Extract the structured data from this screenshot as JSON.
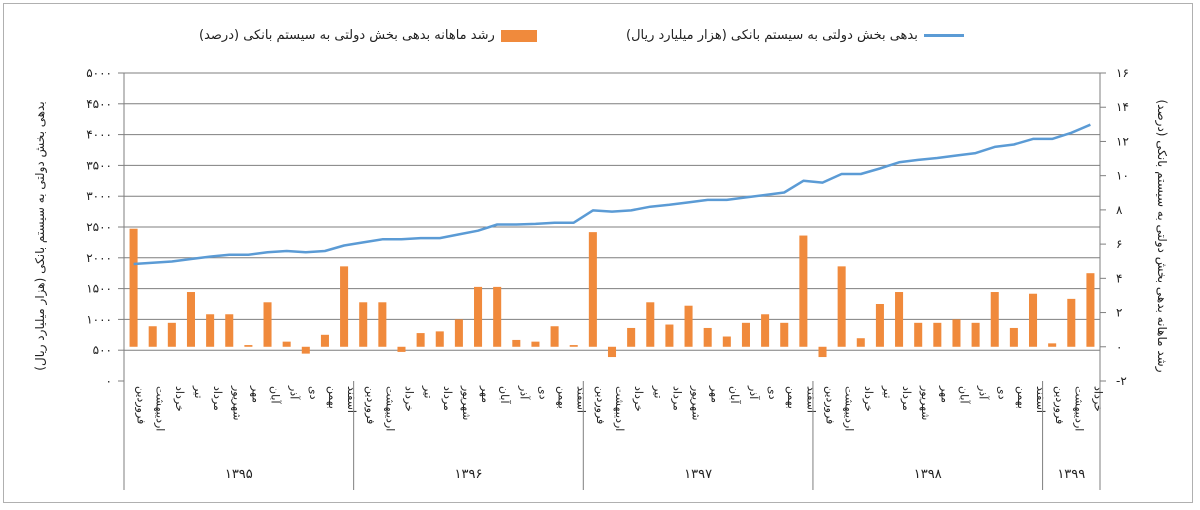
{
  "colors": {
    "bars": "#f08a3c",
    "line": "#5b9bd5",
    "grid": "#7f7f7f",
    "text": "#222222"
  },
  "chart_data": {
    "type": "bar+line",
    "legend": [
      {
        "label": "بدهی بخش دولتی به سیستم بانکی (هزار میلیارد ریال)",
        "kind": "line"
      },
      {
        "label": "رشد ماهانه بدهی بخش دولتی به سیستم بانکی (درصد)",
        "kind": "bar"
      }
    ],
    "ylabel_left": "بدهی بخش دولتی به سیستم بانکی (هزار میلیارد ریال)",
    "ylabel_right": "رشد ماهانه بدهی بخش دولتی به سیستم بانکی (درصد)",
    "left_axis": {
      "min": 0,
      "max": 5000,
      "step": 500,
      "ticks": [
        "۰",
        "۵۰۰",
        "۱۰۰۰",
        "۱۵۰۰",
        "۲۰۰۰",
        "۲۵۰۰",
        "۳۰۰۰",
        "۳۵۰۰",
        "۴۰۰۰",
        "۴۵۰۰",
        "۵۰۰۰"
      ]
    },
    "right_axis": {
      "min": -2,
      "max": 16,
      "step": 2,
      "ticks": [
        "-۲",
        "۰",
        "۲",
        "۴",
        "۶",
        "۸",
        "۱۰",
        "۱۲",
        "۱۴",
        "۱۶"
      ]
    },
    "months": [
      "فروردین",
      "اردیبهشت",
      "خرداد",
      "تیر",
      "مرداد",
      "شهریور",
      "مهر",
      "آبان",
      "آذر",
      "دی",
      "بهمن",
      "اسفند",
      "فروردین",
      "اردیبهشت",
      "خرداد",
      "تیر",
      "مرداد",
      "شهریور",
      "مهر",
      "آبان",
      "آذر",
      "دی",
      "بهمن",
      "اسفند",
      "فروردین",
      "اردیبهشت",
      "خرداد",
      "تیر",
      "مرداد",
      "شهریور",
      "مهر",
      "آبان",
      "آذر",
      "دی",
      "بهمن",
      "اسفند",
      "فروردین",
      "اردیبهشت",
      "خرداد",
      "تیر",
      "مرداد",
      "شهریور",
      "مهر",
      "آبان",
      "آذر",
      "دی",
      "بهمن",
      "اسفند",
      "فروردین",
      "اردیبهشت",
      "خرداد"
    ],
    "years": [
      {
        "label": "۱۳۹۵",
        "count": 12
      },
      {
        "label": "۱۳۹۶",
        "count": 12
      },
      {
        "label": "۱۳۹۷",
        "count": 12
      },
      {
        "label": "۱۳۹۸",
        "count": 12
      },
      {
        "label": "۱۳۹۹",
        "count": 3
      }
    ],
    "series": [
      {
        "name": "بدهی بخش دولتی به سیستم بانکی (هزار میلیارد ریال)",
        "type": "line",
        "axis": "left",
        "values": [
          1900,
          1920,
          1940,
          1980,
          2020,
          2050,
          2050,
          2090,
          2110,
          2090,
          2110,
          2200,
          2250,
          2300,
          2300,
          2320,
          2320,
          2380,
          2440,
          2540,
          2540,
          2550,
          2570,
          2570,
          2770,
          2750,
          2770,
          2830,
          2860,
          2900,
          2940,
          2940,
          2980,
          3020,
          3060,
          3250,
          3220,
          3360,
          3360,
          3450,
          3550,
          3590,
          3620,
          3660,
          3700,
          3800,
          3840,
          3930,
          3930,
          4030,
          4160
        ]
      },
      {
        "name": "رشد ماهانه بدهی بخش دولتی به سیستم بانکی (درصد)",
        "type": "bar",
        "axis": "right",
        "values": [
          6.9,
          1.2,
          1.4,
          3.2,
          1.9,
          1.9,
          0.1,
          2.6,
          0.3,
          -0.4,
          0.7,
          4.7,
          2.6,
          2.6,
          -0.3,
          0.8,
          0.9,
          1.6,
          3.5,
          3.5,
          0.4,
          0.3,
          1.2,
          0.1,
          6.7,
          -0.6,
          1.1,
          2.6,
          1.3,
          2.4,
          1.1,
          0.6,
          1.4,
          1.9,
          1.4,
          6.5,
          -0.6,
          4.7,
          0.5,
          2.5,
          3.2,
          1.4,
          1.4,
          1.6,
          1.4,
          3.2,
          1.1,
          3.1,
          0.2,
          2.8,
          4.3
        ]
      }
    ]
  }
}
